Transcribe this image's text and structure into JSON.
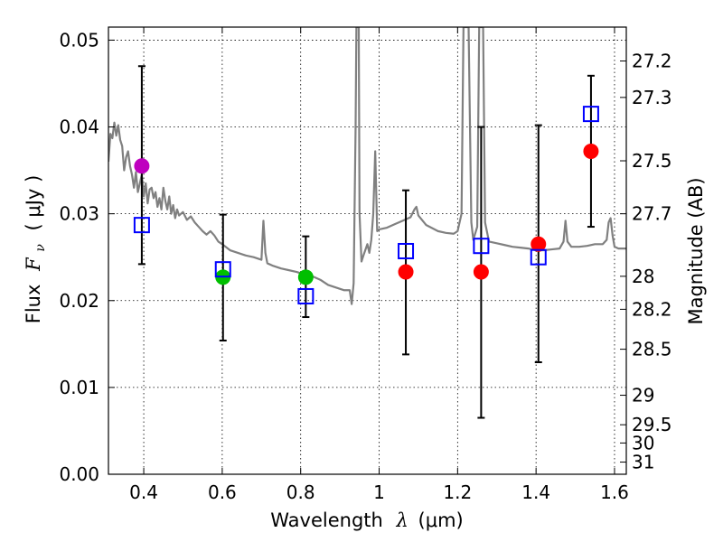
{
  "chart_data": {
    "type": "scatter",
    "xlabel_text": "Wavelength",
    "xlabel_symbol": "λ",
    "xlabel_unit": "(μm)",
    "ylabel_text": "Flux",
    "ylabel_symbol": "F",
    "ylabel_sub": "ν",
    "ylabel_unit": "( μJy )",
    "y2label": "Magnitude (AB)",
    "xlim": [
      0.31,
      1.63
    ],
    "ylim": [
      0.0,
      0.0515
    ],
    "grid": true,
    "x_ticks": [
      0.4,
      0.6,
      0.8,
      1.0,
      1.2,
      1.4,
      1.6
    ],
    "x_tick_labels": [
      "0.4",
      "0.6",
      "0.8",
      "1",
      "1.2",
      "1.4",
      "1.6"
    ],
    "y_ticks": [
      0.0,
      0.01,
      0.02,
      0.03,
      0.04,
      0.05
    ],
    "y_tick_labels": [
      "0.00",
      "0.01",
      "0.02",
      "0.03",
      "0.04",
      "0.05"
    ],
    "y2_ticks": [
      {
        "label": "27.2",
        "flux": 0.0476
      },
      {
        "label": "27.3",
        "flux": 0.0434
      },
      {
        "label": "27.5",
        "flux": 0.0361
      },
      {
        "label": "27.7",
        "flux": 0.03
      },
      {
        "label": "28",
        "flux": 0.0228
      },
      {
        "label": "28.2",
        "flux": 0.019
      },
      {
        "label": "28.5",
        "flux": 0.0144
      },
      {
        "label": "29",
        "flux": 0.0091
      },
      {
        "label": "29.5",
        "flux": 0.0057
      },
      {
        "label": "30",
        "flux": 0.0036
      },
      {
        "label": "31",
        "flux": 0.0014
      }
    ],
    "series": [
      {
        "name": "model spectrum",
        "kind": "line",
        "color": "#808080",
        "points": [
          [
            0.31,
            0.036
          ],
          [
            0.315,
            0.0392
          ],
          [
            0.32,
            0.0387
          ],
          [
            0.325,
            0.0405
          ],
          [
            0.33,
            0.039
          ],
          [
            0.335,
            0.0402
          ],
          [
            0.34,
            0.0385
          ],
          [
            0.345,
            0.0378
          ],
          [
            0.35,
            0.035
          ],
          [
            0.355,
            0.0365
          ],
          [
            0.36,
            0.0372
          ],
          [
            0.365,
            0.0355
          ],
          [
            0.37,
            0.0345
          ],
          [
            0.375,
            0.033
          ],
          [
            0.38,
            0.0348
          ],
          [
            0.385,
            0.0325
          ],
          [
            0.39,
            0.0335
          ],
          [
            0.395,
            0.0345
          ],
          [
            0.4,
            0.032
          ],
          [
            0.405,
            0.0335
          ],
          [
            0.41,
            0.0312
          ],
          [
            0.415,
            0.0328
          ],
          [
            0.42,
            0.033
          ],
          [
            0.425,
            0.0318
          ],
          [
            0.43,
            0.0325
          ],
          [
            0.435,
            0.0308
          ],
          [
            0.44,
            0.0318
          ],
          [
            0.445,
            0.0305
          ],
          [
            0.45,
            0.033
          ],
          [
            0.455,
            0.0315
          ],
          [
            0.46,
            0.0305
          ],
          [
            0.465,
            0.032
          ],
          [
            0.47,
            0.03
          ],
          [
            0.475,
            0.031
          ],
          [
            0.48,
            0.0295
          ],
          [
            0.485,
            0.0305
          ],
          [
            0.49,
            0.0298
          ],
          [
            0.5,
            0.0302
          ],
          [
            0.51,
            0.0293
          ],
          [
            0.52,
            0.0297
          ],
          [
            0.53,
            0.029
          ],
          [
            0.54,
            0.0285
          ],
          [
            0.55,
            0.028
          ],
          [
            0.56,
            0.0276
          ],
          [
            0.57,
            0.028
          ],
          [
            0.58,
            0.0275
          ],
          [
            0.59,
            0.0268
          ],
          [
            0.6,
            0.0265
          ],
          [
            0.62,
            0.0258
          ],
          [
            0.64,
            0.0255
          ],
          [
            0.66,
            0.0252
          ],
          [
            0.68,
            0.025
          ],
          [
            0.7,
            0.0247
          ],
          [
            0.705,
            0.0292
          ],
          [
            0.71,
            0.0255
          ],
          [
            0.715,
            0.0243
          ],
          [
            0.73,
            0.024
          ],
          [
            0.75,
            0.0237
          ],
          [
            0.77,
            0.0235
          ],
          [
            0.79,
            0.0233
          ],
          [
            0.81,
            0.023
          ],
          [
            0.83,
            0.0228
          ],
          [
            0.85,
            0.0224
          ],
          [
            0.87,
            0.0218
          ],
          [
            0.89,
            0.0215
          ],
          [
            0.91,
            0.0212
          ],
          [
            0.925,
            0.0212
          ],
          [
            0.93,
            0.0196
          ],
          [
            0.935,
            0.022
          ],
          [
            0.94,
            0.04
          ],
          [
            0.942,
            0.0515
          ],
          [
            0.948,
            0.0515
          ],
          [
            0.95,
            0.03
          ],
          [
            0.955,
            0.0245
          ],
          [
            0.96,
            0.0252
          ],
          [
            0.97,
            0.0265
          ],
          [
            0.975,
            0.0255
          ],
          [
            0.98,
            0.027
          ],
          [
            0.985,
            0.03
          ],
          [
            0.99,
            0.0372
          ],
          [
            0.995,
            0.028
          ],
          [
            1.0,
            0.0282
          ],
          [
            1.02,
            0.0284
          ],
          [
            1.04,
            0.0288
          ],
          [
            1.06,
            0.0292
          ],
          [
            1.08,
            0.0296
          ],
          [
            1.09,
            0.0305
          ],
          [
            1.095,
            0.0308
          ],
          [
            1.1,
            0.0298
          ],
          [
            1.12,
            0.0287
          ],
          [
            1.15,
            0.028
          ],
          [
            1.17,
            0.0278
          ],
          [
            1.19,
            0.0277
          ],
          [
            1.2,
            0.028
          ],
          [
            1.21,
            0.03
          ],
          [
            1.215,
            0.0515
          ],
          [
            1.228,
            0.0515
          ],
          [
            1.235,
            0.029
          ],
          [
            1.24,
            0.027
          ],
          [
            1.25,
            0.0285
          ],
          [
            1.255,
            0.0515
          ],
          [
            1.265,
            0.0515
          ],
          [
            1.27,
            0.029
          ],
          [
            1.28,
            0.0268
          ],
          [
            1.3,
            0.0266
          ],
          [
            1.32,
            0.0264
          ],
          [
            1.34,
            0.0262
          ],
          [
            1.36,
            0.0261
          ],
          [
            1.38,
            0.026
          ],
          [
            1.4,
            0.0258
          ],
          [
            1.42,
            0.0258
          ],
          [
            1.44,
            0.0259
          ],
          [
            1.46,
            0.026
          ],
          [
            1.47,
            0.0268
          ],
          [
            1.475,
            0.0292
          ],
          [
            1.48,
            0.0268
          ],
          [
            1.49,
            0.0262
          ],
          [
            1.51,
            0.0262
          ],
          [
            1.53,
            0.0263
          ],
          [
            1.55,
            0.0265
          ],
          [
            1.57,
            0.0265
          ],
          [
            1.58,
            0.027
          ],
          [
            1.585,
            0.029
          ],
          [
            1.59,
            0.0295
          ],
          [
            1.595,
            0.0275
          ],
          [
            1.6,
            0.0262
          ],
          [
            1.61,
            0.026
          ],
          [
            1.62,
            0.026
          ],
          [
            1.63,
            0.026
          ]
        ]
      },
      {
        "name": "observed",
        "kind": "points",
        "points": [
          {
            "x": 0.395,
            "y": 0.0355,
            "color": "#bf00bf"
          },
          {
            "x": 0.602,
            "y": 0.0227,
            "color": "#00bf00"
          },
          {
            "x": 0.813,
            "y": 0.0227,
            "color": "#00bf00"
          },
          {
            "x": 1.068,
            "y": 0.0233,
            "color": "#ff0000"
          },
          {
            "x": 1.26,
            "y": 0.0233,
            "color": "#ff0000"
          },
          {
            "x": 1.406,
            "y": 0.0265,
            "color": "#ff0000"
          },
          {
            "x": 1.54,
            "y": 0.0372,
            "color": "#ff0000"
          }
        ]
      },
      {
        "name": "model photometry",
        "kind": "open-squares",
        "color": "#0000ff",
        "points": [
          {
            "x": 0.395,
            "y": 0.0287
          },
          {
            "x": 0.602,
            "y": 0.0236
          },
          {
            "x": 0.813,
            "y": 0.0205
          },
          {
            "x": 1.068,
            "y": 0.0257
          },
          {
            "x": 1.26,
            "y": 0.0263
          },
          {
            "x": 1.406,
            "y": 0.025
          },
          {
            "x": 1.54,
            "y": 0.0415
          }
        ]
      },
      {
        "name": "error bars",
        "kind": "errorbar",
        "color": "#000000",
        "bars": [
          {
            "x": 0.395,
            "low": 0.0242,
            "high": 0.047
          },
          {
            "x": 0.602,
            "low": 0.0154,
            "high": 0.0299
          },
          {
            "x": 0.813,
            "low": 0.0181,
            "high": 0.0274
          },
          {
            "x": 1.068,
            "low": 0.0138,
            "high": 0.0327
          },
          {
            "x": 1.26,
            "low": 0.0065,
            "high": 0.04
          },
          {
            "x": 1.406,
            "low": 0.0129,
            "high": 0.0402
          },
          {
            "x": 1.54,
            "low": 0.0285,
            "high": 0.0459
          }
        ]
      }
    ]
  }
}
